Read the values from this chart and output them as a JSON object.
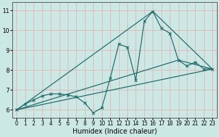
{
  "bg_color": "#cce8e4",
  "grid_color_major": "#e8b0b0",
  "line_color": "#1a6b6b",
  "xlabel": "Humidex (Indice chaleur)",
  "xlim": [
    -0.5,
    23.5
  ],
  "ylim": [
    5.6,
    11.4
  ],
  "yticks": [
    6,
    7,
    8,
    9,
    10,
    11
  ],
  "xticks": [
    0,
    1,
    2,
    3,
    4,
    5,
    6,
    7,
    8,
    9,
    10,
    11,
    12,
    13,
    14,
    15,
    16,
    17,
    18,
    19,
    20,
    21,
    22,
    23
  ],
  "main_x": [
    0,
    1,
    2,
    3,
    4,
    5,
    6,
    7,
    8,
    9,
    10,
    11,
    12,
    13,
    14,
    15,
    16,
    17,
    18,
    19,
    20,
    21,
    22,
    23
  ],
  "main_y": [
    6.0,
    6.3,
    6.5,
    6.7,
    6.8,
    6.8,
    6.75,
    6.65,
    6.35,
    5.85,
    6.1,
    7.6,
    9.3,
    9.15,
    7.5,
    10.45,
    10.95,
    10.1,
    9.85,
    8.5,
    8.2,
    8.4,
    8.05,
    8.05
  ],
  "line1_x": [
    0,
    23
  ],
  "line1_y": [
    6.0,
    8.05
  ],
  "line2_x": [
    0,
    16,
    23
  ],
  "line2_y": [
    6.0,
    10.95,
    8.05
  ],
  "line3_x": [
    0,
    19,
    23
  ],
  "line3_y": [
    6.0,
    8.5,
    8.05
  ],
  "marker_style": "x",
  "marker_size": 3,
  "linewidth": 0.9,
  "tick_fontsize": 5.5,
  "xlabel_fontsize": 7
}
